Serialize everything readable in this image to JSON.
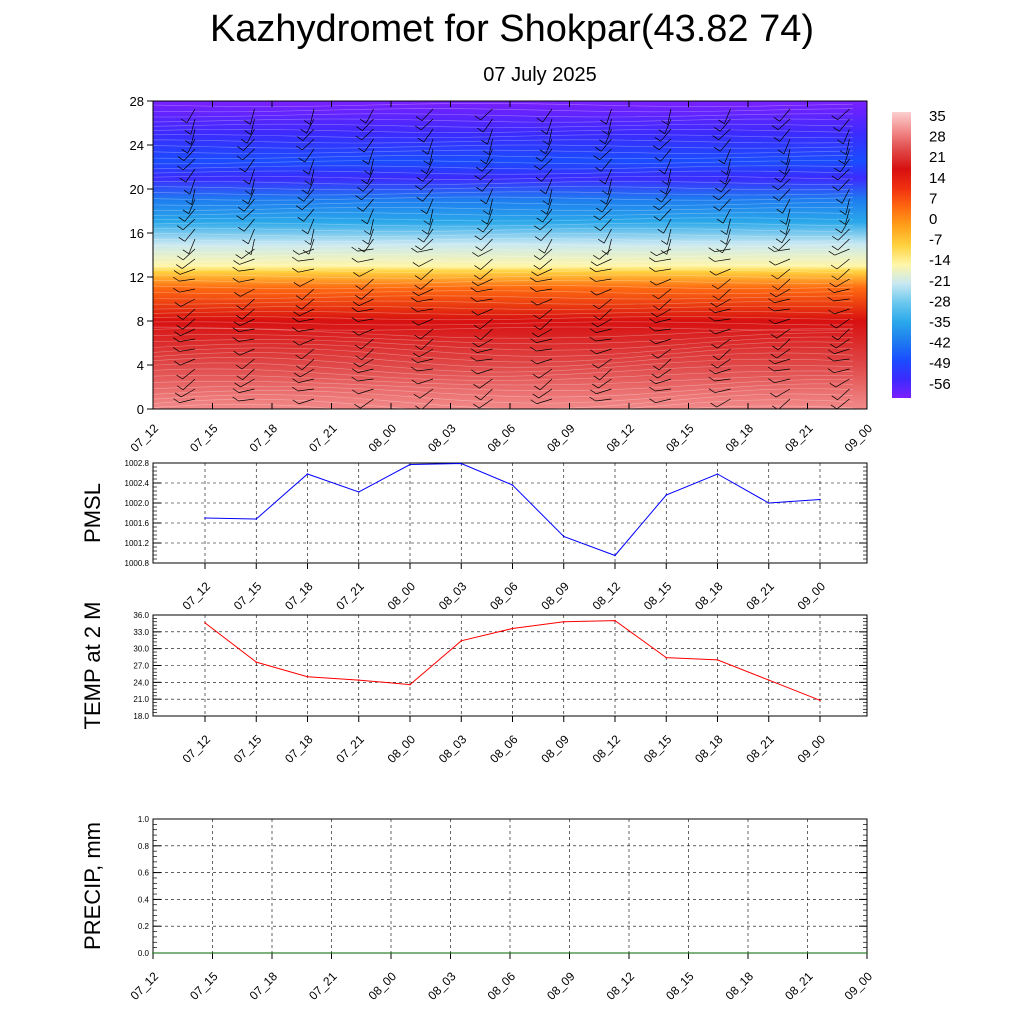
{
  "title": "Kazhydromet for Shokpar(43.82 74)",
  "subtitle": "07 July 2025",
  "time_labels": [
    "07_12",
    "07_15",
    "07_18",
    "07_21",
    "08_00",
    "08_03",
    "08_06",
    "08_09",
    "08_12",
    "08_15",
    "08_18",
    "08_21",
    "09_00"
  ],
  "chart_data": [
    {
      "type": "heatmap",
      "name": "vertical temperature cross-section with wind barbs",
      "x": [
        "07_12",
        "07_15",
        "07_18",
        "07_21",
        "08_00",
        "08_03",
        "08_06",
        "08_09",
        "08_12",
        "08_15",
        "08_18",
        "08_21",
        "09_00"
      ],
      "y_ticks": [
        0,
        4,
        8,
        12,
        16,
        20,
        24,
        28
      ],
      "ylim": [
        0,
        28
      ],
      "temperature_profile": [
        {
          "y": 0,
          "value": 33
        },
        {
          "y": 4,
          "value": 28
        },
        {
          "y": 8,
          "value": 20
        },
        {
          "y": 11,
          "value": 6
        },
        {
          "y": 12.5,
          "value": -6
        },
        {
          "y": 13,
          "value": -14
        },
        {
          "y": 15,
          "value": -22
        },
        {
          "y": 17,
          "value": -32
        },
        {
          "y": 19,
          "value": -45
        },
        {
          "y": 21,
          "value": -58
        },
        {
          "y": 22.5,
          "value": -52
        },
        {
          "y": 25,
          "value": -58
        },
        {
          "y": 28,
          "value": -60
        }
      ],
      "colorbar_labels": [
        "35",
        "28",
        "21",
        "14",
        "7",
        "0",
        "-7",
        "-14",
        "-21",
        "-28",
        "-35",
        "-42",
        "-49",
        "-56"
      ],
      "colorbar_range": [
        -63,
        42
      ],
      "colorscale": [
        "#7b1fff",
        "#3b2bff",
        "#1a4dff",
        "#1e7df0",
        "#2aa8ea",
        "#6cc8ee",
        "#c8e8f2",
        "#fff6a8",
        "#ffd23f",
        "#ffa21a",
        "#ff6a10",
        "#f03010",
        "#d81010",
        "#e04848",
        "#f28a8a",
        "#fbd0d0"
      ],
      "grid": false
    },
    {
      "type": "line",
      "ylabel": "PMSL",
      "x": [
        "07_12",
        "07_15",
        "07_18",
        "07_21",
        "08_00",
        "08_03",
        "08_06",
        "08_09",
        "08_12",
        "08_15",
        "08_18",
        "08_21",
        "09_00"
      ],
      "y_ticks": [
        "1000.8",
        "1001.2",
        "1001.6",
        "1002.0",
        "1002.4",
        "1002.8"
      ],
      "ylim": [
        1000.8,
        1002.8
      ],
      "series": [
        {
          "values": [
            1001.7,
            1001.68,
            1002.58,
            1002.22,
            1002.77,
            1002.79,
            1002.36,
            1001.33,
            1000.95,
            1002.16,
            1002.58,
            1002.0,
            1002.07
          ],
          "color": "#0000ff"
        }
      ],
      "grid": true
    },
    {
      "type": "line",
      "ylabel": "TEMP at 2 M",
      "x": [
        "07_12",
        "07_15",
        "07_18",
        "07_21",
        "08_00",
        "08_03",
        "08_06",
        "08_09",
        "08_12",
        "08_15",
        "08_18",
        "08_21",
        "09_00"
      ],
      "y_ticks": [
        "18.0",
        "21.0",
        "24.0",
        "27.0",
        "30.0",
        "33.0",
        "36.0"
      ],
      "ylim": [
        18,
        36
      ],
      "series": [
        {
          "values": [
            34.6,
            27.6,
            25.0,
            24.4,
            23.6,
            31.4,
            33.6,
            34.8,
            35.0,
            28.4,
            28.0,
            24.4,
            20.8
          ],
          "color": "#ff0000"
        }
      ],
      "grid": true
    },
    {
      "type": "line",
      "ylabel": "PRECIP, mm",
      "x": [
        "07_12",
        "07_15",
        "07_18",
        "07_21",
        "08_00",
        "08_03",
        "08_06",
        "08_09",
        "08_12",
        "08_15",
        "08_18",
        "08_21",
        "09_00"
      ],
      "y_ticks": [
        "0.0",
        "0.2",
        "0.4",
        "0.6",
        "0.8",
        "1.0"
      ],
      "ylim": [
        0,
        1
      ],
      "series": [
        {
          "values": [
            0,
            0,
            0,
            0,
            0,
            0,
            0,
            0,
            0,
            0,
            0,
            0,
            0
          ],
          "color": "#006400"
        }
      ],
      "grid": true
    }
  ]
}
